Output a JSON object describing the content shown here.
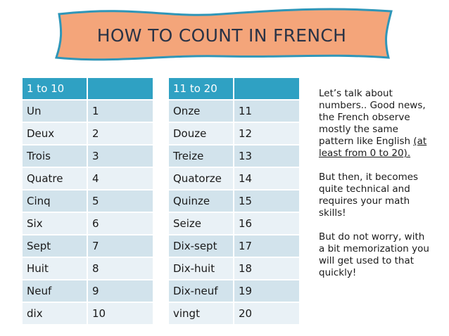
{
  "title": "HOW TO COUNT IN FRENCH",
  "colors": {
    "banner_fill": "#f4a57a",
    "banner_border": "#2f96b8",
    "header": "#2fa1c3"
  },
  "tables": [
    {
      "header": "1 to 10",
      "rows": [
        [
          "Un",
          "1"
        ],
        [
          "Deux",
          "2"
        ],
        [
          "Trois",
          "3"
        ],
        [
          "Quatre",
          "4"
        ],
        [
          "Cinq",
          "5"
        ],
        [
          "Six",
          "6"
        ],
        [
          "Sept",
          "7"
        ],
        [
          "Huit",
          "8"
        ],
        [
          "Neuf",
          "9"
        ],
        [
          "dix",
          "10"
        ]
      ]
    },
    {
      "header": "11 to 20",
      "rows": [
        [
          "Onze",
          "11"
        ],
        [
          "Douze",
          "12"
        ],
        [
          "Treize",
          "13"
        ],
        [
          "Quatorze",
          "14"
        ],
        [
          "Quinze",
          "15"
        ],
        [
          "Seize",
          "16"
        ],
        [
          "Dix-sept",
          "17"
        ],
        [
          "Dix-huit",
          "18"
        ],
        [
          "Dix-neuf",
          "19"
        ],
        [
          "vingt",
          "20"
        ]
      ]
    }
  ],
  "side": {
    "p1_text": "Let’s talk about numbers.. Good news, the French observe mostly the same pattern like English ",
    "p1_underlined": "(at least from 0 to 20).",
    "p2": "But then, it becomes quite technical and requires your math skills!",
    "p3": "But do not worry, with a bit memorization you will get used to that quickly!"
  }
}
